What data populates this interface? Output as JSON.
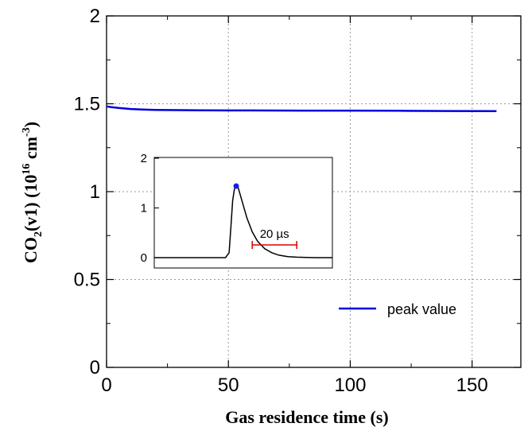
{
  "chart_data": [
    {
      "type": "line",
      "xlabel": "Gas residence time (s)",
      "ylabel": {
        "prefix": "CO",
        "sub": "2",
        "mid": "(v1) (10",
        "sup": "16",
        "unit": " cm",
        "unit_sup": "-3",
        "suffix": ")"
      },
      "xlim": [
        0,
        170
      ],
      "ylim": [
        0,
        2
      ],
      "xticks": [
        "0",
        "50",
        "100",
        "150"
      ],
      "yticks": [
        "0",
        "0.5",
        "1",
        "1.5",
        "2"
      ],
      "grid": true,
      "legend_position": "bottom-right",
      "series": [
        {
          "name": "peak value",
          "color": "#0000dd",
          "x": [
            0,
            2,
            5,
            10,
            15,
            20,
            30,
            40,
            50,
            60,
            80,
            100,
            120,
            140,
            160
          ],
          "y": [
            1.485,
            1.481,
            1.476,
            1.47,
            1.467,
            1.465,
            1.464,
            1.463,
            1.462,
            1.462,
            1.461,
            1.461,
            1.46,
            1.459,
            1.458
          ]
        }
      ]
    },
    {
      "type": "line",
      "inset": true,
      "xlim": [
        0,
        100
      ],
      "ylim": [
        0,
        2
      ],
      "yticks": [
        "0",
        "1",
        "2"
      ],
      "marker_color": "#1a1aee",
      "scalebar": {
        "label": "20 µs",
        "color": "#dd0000",
        "x_start": 55,
        "x_end": 80
      },
      "series": [
        {
          "color": "#000000",
          "x": [
            0,
            40,
            42,
            43,
            44,
            45,
            46,
            47,
            48,
            50,
            52,
            55,
            58,
            62,
            66,
            70,
            75,
            80,
            90,
            100
          ],
          "y": [
            0,
            0,
            0.1,
            0.6,
            1.15,
            1.38,
            1.44,
            1.42,
            1.3,
            1.05,
            0.8,
            0.52,
            0.33,
            0.18,
            0.1,
            0.05,
            0.02,
            0.01,
            0,
            0
          ]
        }
      ],
      "peak_point": {
        "x": 46,
        "y": 1.44
      }
    }
  ]
}
